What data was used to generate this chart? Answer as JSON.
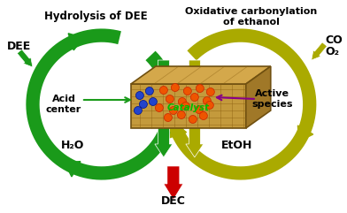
{
  "title_left": "Hydrolysis of DEE",
  "title_right": "Oxidative carbonylation\nof ethanol",
  "label_DEE": "DEE",
  "label_CO": "CO",
  "label_O2": "O₂",
  "label_H2O": "H₂O",
  "label_EtOH": "EtOH",
  "label_DEC": "DEC",
  "label_catalyst": "Catalyst",
  "label_acid": "Acid\ncenter",
  "label_active": "Active\nspecies",
  "green_dark": "#1a9a1a",
  "green_light": "#44cc44",
  "yellow_dark": "#aaaa00",
  "yellow_light": "#dddd00",
  "red_color": "#cc0000",
  "catalyst_top": "#d4a84b",
  "catalyst_front": "#c49a3c",
  "catalyst_right": "#a07828",
  "dot_orange": "#ee5500",
  "dot_red_edge": "#cc2200",
  "dot_blue": "#2244cc",
  "dot_blue_edge": "#001188",
  "bg_color": "#ffffff",
  "purple": "#880088"
}
